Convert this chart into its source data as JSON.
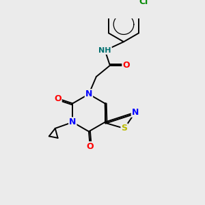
{
  "background_color": "#ebebeb",
  "bond_color": "#000000",
  "atom_colors": {
    "N": "#0000ff",
    "O": "#ff0000",
    "S": "#bbbb00",
    "Cl": "#008800",
    "H": "#007070",
    "C": "#000000"
  },
  "figsize": [
    3.0,
    3.0
  ],
  "dpi": 100
}
